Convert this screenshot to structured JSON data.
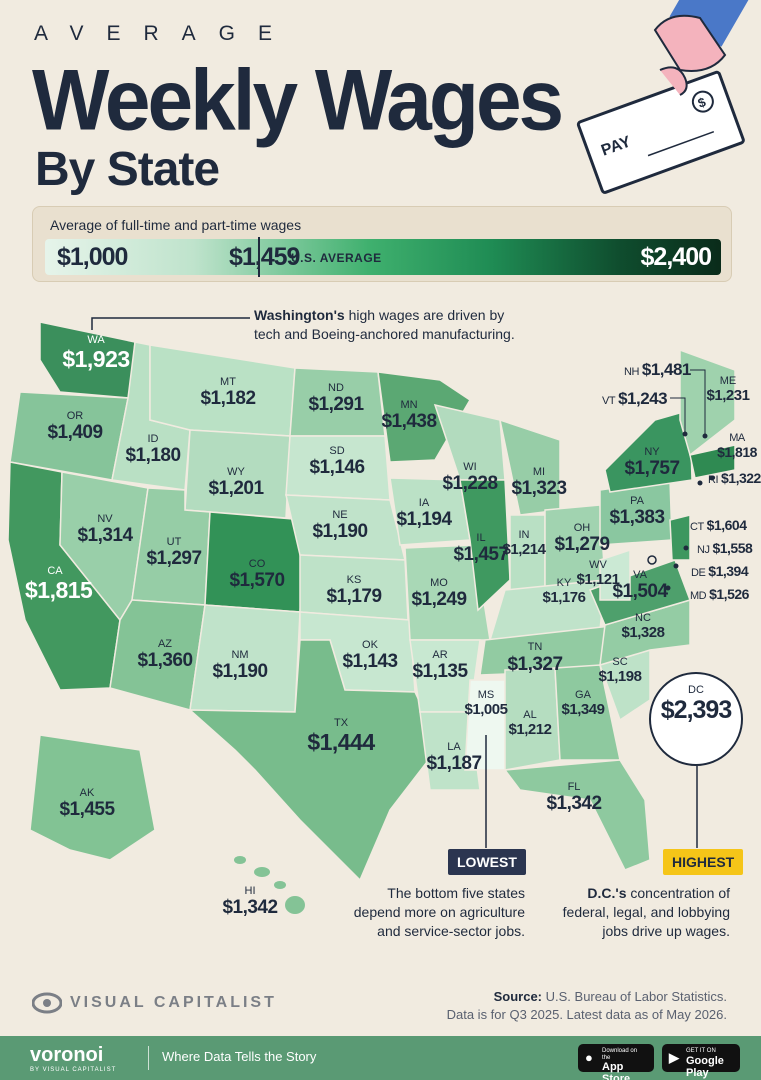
{
  "header": {
    "kicker": "AVERAGE",
    "title": "Weekly Wages",
    "subtitle": "By State",
    "check_text": "PAY",
    "check_symbol": "$"
  },
  "legend": {
    "caption": "Average of full-time and part-time wages",
    "min": "$1,000",
    "avg": "$1,459",
    "avg_label": "U.S. AVERAGE",
    "max": "$2,400"
  },
  "states": {
    "WA": {
      "code": "WA",
      "value": "$1,923"
    },
    "OR": {
      "code": "OR",
      "value": "$1,409"
    },
    "CA": {
      "code": "CA",
      "value": "$1,815"
    },
    "ID": {
      "code": "ID",
      "value": "$1,180"
    },
    "NV": {
      "code": "NV",
      "value": "$1,314"
    },
    "MT": {
      "code": "MT",
      "value": "$1,182"
    },
    "WY": {
      "code": "WY",
      "value": "$1,201"
    },
    "UT": {
      "code": "UT",
      "value": "$1,297"
    },
    "AZ": {
      "code": "AZ",
      "value": "$1,360"
    },
    "CO": {
      "code": "CO",
      "value": "$1,570"
    },
    "NM": {
      "code": "NM",
      "value": "$1,190"
    },
    "ND": {
      "code": "ND",
      "value": "$1,291"
    },
    "SD": {
      "code": "SD",
      "value": "$1,146"
    },
    "NE": {
      "code": "NE",
      "value": "$1,190"
    },
    "KS": {
      "code": "KS",
      "value": "$1,179"
    },
    "OK": {
      "code": "OK",
      "value": "$1,143"
    },
    "TX": {
      "code": "TX",
      "value": "$1,444"
    },
    "MN": {
      "code": "MN",
      "value": "$1,438"
    },
    "IA": {
      "code": "IA",
      "value": "$1,194"
    },
    "MO": {
      "code": "MO",
      "value": "$1,249"
    },
    "AR": {
      "code": "AR",
      "value": "$1,135"
    },
    "LA": {
      "code": "LA",
      "value": "$1,187"
    },
    "WI": {
      "code": "WI",
      "value": "$1,228"
    },
    "IL": {
      "code": "IL",
      "value": "$1,457"
    },
    "MS": {
      "code": "MS",
      "value": "$1,005"
    },
    "MI": {
      "code": "MI",
      "value": "$1,323"
    },
    "IN": {
      "code": "IN",
      "value": "$1,214"
    },
    "KY": {
      "code": "KY",
      "value": "$1,176"
    },
    "TN": {
      "code": "TN",
      "value": "$1,327"
    },
    "AL": {
      "code": "AL",
      "value": "$1,212"
    },
    "OH": {
      "code": "OH",
      "value": "$1,279"
    },
    "GA": {
      "code": "GA",
      "value": "$1,349"
    },
    "FL": {
      "code": "FL",
      "value": "$1,342"
    },
    "SC": {
      "code": "SC",
      "value": "$1,198"
    },
    "NC": {
      "code": "NC",
      "value": "$1,328"
    },
    "VA": {
      "code": "VA",
      "value": "$1,504"
    },
    "WV": {
      "code": "WV",
      "value": "$1,121"
    },
    "PA": {
      "code": "PA",
      "value": "$1,383"
    },
    "NY": {
      "code": "NY",
      "value": "$1,757"
    },
    "ME": {
      "code": "ME",
      "value": "$1,231"
    },
    "NH": {
      "code": "NH",
      "value": "$1,481"
    },
    "VT": {
      "code": "VT",
      "value": "$1,243"
    },
    "MA": {
      "code": "MA",
      "value": "$1,818"
    },
    "RI": {
      "code": "RI",
      "value": "$1,322"
    },
    "CT": {
      "code": "CT",
      "value": "$1,604"
    },
    "NJ": {
      "code": "NJ",
      "value": "$1,558"
    },
    "DE": {
      "code": "DE",
      "value": "$1,394"
    },
    "MD": {
      "code": "MD",
      "value": "$1,526"
    },
    "AK": {
      "code": "AK",
      "value": "$1,455"
    },
    "HI": {
      "code": "HI",
      "value": "$1,342"
    },
    "DC": {
      "code": "DC",
      "value": "$2,393"
    }
  },
  "annotations": {
    "wa_bold": "Washington's",
    "wa_rest_1": " high wages are driven by",
    "wa_rest_2": "tech and Boeing-anchored manufacturing.",
    "low_tag": "LOWEST",
    "low_note_1": "The bottom five states",
    "low_note_2": "depend more on agriculture",
    "low_note_3": "and service-sector jobs.",
    "high_tag": "HIGHEST",
    "high_bold": "D.C.'s",
    "high_rest_1": " concentration of",
    "high_note_2": "federal, legal, and lobbying",
    "high_note_3": "jobs drive up wages."
  },
  "source": {
    "label": "Source:",
    "text": " U.S. Bureau of Labor Statistics.",
    "line2": "Data is for Q3 2025. Latest data as of May 2026."
  },
  "branding": {
    "vc_name": "VISUAL CAPITALIST",
    "voronoi": "voronoi",
    "voronoi_sub": "BY VISUAL CAPITALIST",
    "tagline": "Where Data Tells the Story",
    "apple_small": "Download on the",
    "apple_big": "App Store",
    "google_small": "GET IT ON",
    "google_big": "Google Play"
  },
  "colors": {
    "background": "#f1ebe0",
    "text": "#1f2a3d",
    "highest_tag": "#f5c518",
    "lowest_tag": "#2b3550",
    "footer": "#5a9a74"
  }
}
